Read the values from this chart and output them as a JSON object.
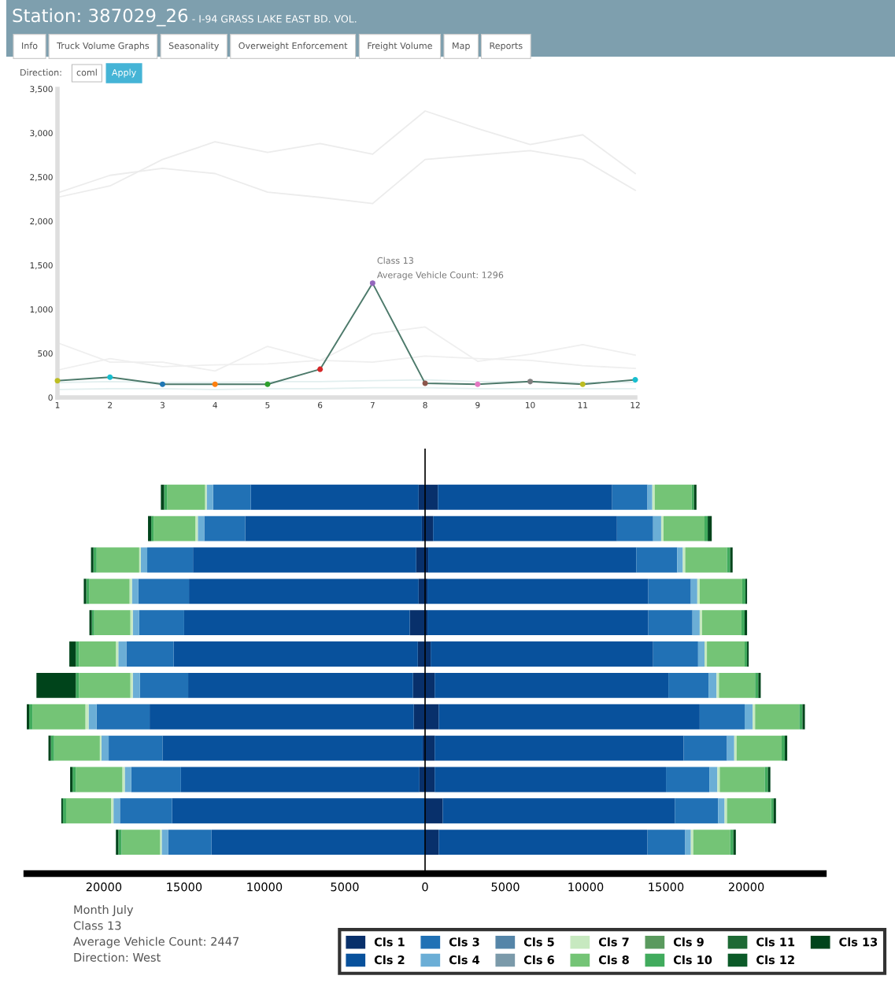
{
  "chart_data": [
    {
      "type": "line",
      "title": "Station: 387029_26",
      "subtitle": "- I-94 GRASS LAKE EAST BD. VOL.",
      "x": [
        1,
        2,
        3,
        4,
        5,
        6,
        7,
        8,
        9,
        10,
        11,
        12
      ],
      "xlim": [
        1,
        12
      ],
      "xticks": [
        1,
        2,
        3,
        4,
        5,
        6,
        7,
        8,
        9,
        10,
        11,
        12
      ],
      "ylim": [
        0,
        3500
      ],
      "yticks": [
        0,
        500,
        {
          "value": 1000,
          "label": "1,000"
        },
        {
          "value": 1500,
          "label": "1,500"
        },
        {
          "value": 2000,
          "label": "2,000"
        },
        {
          "value": 2500,
          "label": "2,500"
        },
        {
          "value": 3000,
          "label": "3,000"
        },
        {
          "value": 3500,
          "label": "3,500"
        }
      ],
      "grid": false,
      "marker": "circle",
      "line_style": "solid",
      "series": [
        {
          "color": "#ececec",
          "marker": "none",
          "values": [
            2270,
            2400,
            2700,
            2900,
            2780,
            2880,
            2760,
            3250,
            3050,
            2870,
            2980,
            2540
          ]
        },
        {
          "color": "#ececec",
          "marker": "none",
          "values": [
            2320,
            2520,
            2600,
            2540,
            2330,
            2270,
            2200,
            2700,
            2750,
            2800,
            2700,
            2350
          ]
        },
        {
          "color": "#efefef",
          "marker": "none",
          "values": [
            620,
            400,
            400,
            300,
            580,
            420,
            720,
            800,
            410,
            490,
            600,
            480
          ]
        },
        {
          "color": "#efefef",
          "marker": "none",
          "values": [
            310,
            440,
            350,
            370,
            380,
            420,
            400,
            470,
            440,
            420,
            360,
            330
          ]
        },
        {
          "color": "#e2efef",
          "marker": "none",
          "values": [
            170,
            180,
            170,
            170,
            180,
            180,
            190,
            200,
            180,
            180,
            170,
            170
          ]
        },
        {
          "color": "#e2efef",
          "marker": "none",
          "values": [
            90,
            100,
            100,
            90,
            100,
            100,
            110,
            110,
            100,
            100,
            100,
            100
          ]
        },
        {
          "color": "#4d7a6b",
          "values": [
            190,
            230,
            150,
            150,
            150,
            320,
            1296,
            160,
            150,
            180,
            150,
            200
          ],
          "colors": [
            "#bcbd22",
            "#17becf",
            "#1f77b4",
            "#ff7f0e",
            "#2ca02c",
            "#d62728",
            "#9467bd",
            "#8c564b",
            "#e377c2",
            "#7f7f7f",
            "#bcbd22",
            "#17becf"
          ]
        }
      ],
      "annotations": [
        "Info",
        "Truck Volume Graphs",
        "Seasonality",
        "Overweight Enforcement",
        "Freight Volume",
        "Map",
        "Reports",
        "Direction:",
        "coml",
        "Apply",
        {
          "text": "Class 13\nAverage Vehicle Count: 1296",
          "x": 7,
          "y": 1296
        }
      ]
    },
    {
      "type": "bar",
      "orientation": "horizontal",
      "stacked": true,
      "tick_labels": "x",
      "grid": false,
      "legend": "bottom right",
      "categories": [
        null,
        null,
        null,
        null,
        null,
        null,
        null,
        null,
        null,
        null,
        null,
        null
      ],
      "xlim": [
        -24800,
        24800
      ],
      "xticks": [
        {
          "value": -20000,
          "label": "20000"
        },
        {
          "value": -15000,
          "label": "15000"
        },
        {
          "value": -10000,
          "label": "10000"
        },
        {
          "value": -5000,
          "label": "5000"
        },
        0,
        5000,
        10000,
        15000,
        20000
      ],
      "ref_lines": [
        {
          "axis": "x",
          "value": 0,
          "color": "#000000"
        }
      ],
      "series": [
        {
          "name": "Cls 1",
          "color": "#08306b",
          "values": [
            -400,
            -200,
            -550,
            -400,
            -950,
            -450,
            -750,
            -700,
            -150,
            -350,
            0,
            0
          ]
        },
        {
          "name": "Cls 2",
          "color": "#08519c",
          "values": [
            -10450,
            -11000,
            -13900,
            -14300,
            -14050,
            -15200,
            -14000,
            -16450,
            -16200,
            -14850,
            -15750,
            -13300
          ]
        },
        {
          "name": "Cls 3",
          "color": "#2171b5",
          "values": [
            -2350,
            -2550,
            -2850,
            -3150,
            -2800,
            -2950,
            -3000,
            -3300,
            -3350,
            -3100,
            -3250,
            -2700
          ]
        },
        {
          "name": "Cls 4",
          "color": "#6baed6",
          "values": [
            -400,
            -400,
            -400,
            -400,
            -400,
            -500,
            -450,
            -500,
            -450,
            -400,
            -400,
            -400
          ]
        },
        {
          "name": "Cls 5",
          "color": "#5585a8",
          "values": [
            null,
            null,
            null,
            null,
            null,
            null,
            null,
            null,
            null,
            null,
            null,
            null
          ]
        },
        {
          "name": "Cls 6",
          "color": "#7b9aaa",
          "values": [
            null,
            null,
            null,
            null,
            null,
            null,
            null,
            null,
            null,
            null,
            null,
            null
          ]
        },
        {
          "name": "Cls 7",
          "color": "#c7e9c0",
          "values": [
            -100,
            -150,
            -100,
            -150,
            -150,
            -150,
            -150,
            -200,
            -100,
            -150,
            -150,
            -100
          ]
        },
        {
          "name": "Cls 8",
          "color": "#74c476",
          "values": [
            -2350,
            -2600,
            -2650,
            -2500,
            -2250,
            -2300,
            -3200,
            -3300,
            -2850,
            -2900,
            -2800,
            -2400
          ]
        },
        {
          "name": "Cls 9",
          "color": "#5a9a5e",
          "values": [
            null,
            null,
            null,
            null,
            null,
            null,
            null,
            null,
            null,
            null,
            null,
            null
          ]
        },
        {
          "name": "Cls 10",
          "color": "#41ab5d",
          "values": [
            -200,
            -150,
            -200,
            -200,
            -150,
            -200,
            -200,
            -200,
            -200,
            -200,
            -200,
            -200
          ]
        },
        {
          "name": "Cls 11",
          "color": "#1e6a35",
          "values": [
            null,
            null,
            null,
            null,
            null,
            null,
            null,
            null,
            null,
            null,
            null,
            null
          ]
        },
        {
          "name": "Cls 12",
          "color": "#0b5a28",
          "values": [
            null,
            null,
            null,
            null,
            null,
            null,
            null,
            null,
            null,
            null,
            null,
            null
          ]
        },
        {
          "name": "Cls 13",
          "color": "#00441b",
          "values": [
            -200,
            -200,
            -150,
            -150,
            -150,
            -400,
            -2447,
            -150,
            -150,
            -150,
            -100,
            -150
          ]
        },
        {
          "color": "#08306b",
          "values": [
            800,
            500,
            200,
            150,
            150,
            350,
            600,
            850,
            600,
            600,
            1100,
            850
          ]
        },
        {
          "color": "#08519c",
          "values": [
            10850,
            11450,
            12950,
            13750,
            13750,
            13850,
            14550,
            16250,
            15500,
            14400,
            14450,
            13000
          ]
        },
        {
          "color": "#2171b5",
          "values": [
            2200,
            2250,
            2550,
            2650,
            2750,
            2800,
            2500,
            2800,
            2700,
            2700,
            2700,
            2350
          ]
        },
        {
          "color": "#6baed6",
          "values": [
            300,
            500,
            350,
            400,
            450,
            400,
            500,
            500,
            450,
            500,
            400,
            350
          ]
        },
        {
          "color": "#c7e9c0",
          "values": [
            150,
            150,
            150,
            150,
            150,
            150,
            150,
            150,
            150,
            150,
            150,
            150
          ]
        },
        {
          "color": "#74c476",
          "values": [
            2300,
            2550,
            2600,
            2650,
            2450,
            2350,
            2250,
            2750,
            2800,
            2800,
            2750,
            2300
          ]
        },
        {
          "color": "#41ab5d",
          "values": [
            150,
            200,
            200,
            200,
            200,
            150,
            200,
            200,
            200,
            200,
            150,
            200
          ]
        },
        {
          "color": "#00441b",
          "values": [
            150,
            250,
            150,
            100,
            150,
            100,
            150,
            150,
            150,
            150,
            150,
            150
          ]
        }
      ],
      "annotations": [
        "Month July\nClass 13\nAverage Vehicle Count: 2447\nDirection: West"
      ]
    }
  ]
}
